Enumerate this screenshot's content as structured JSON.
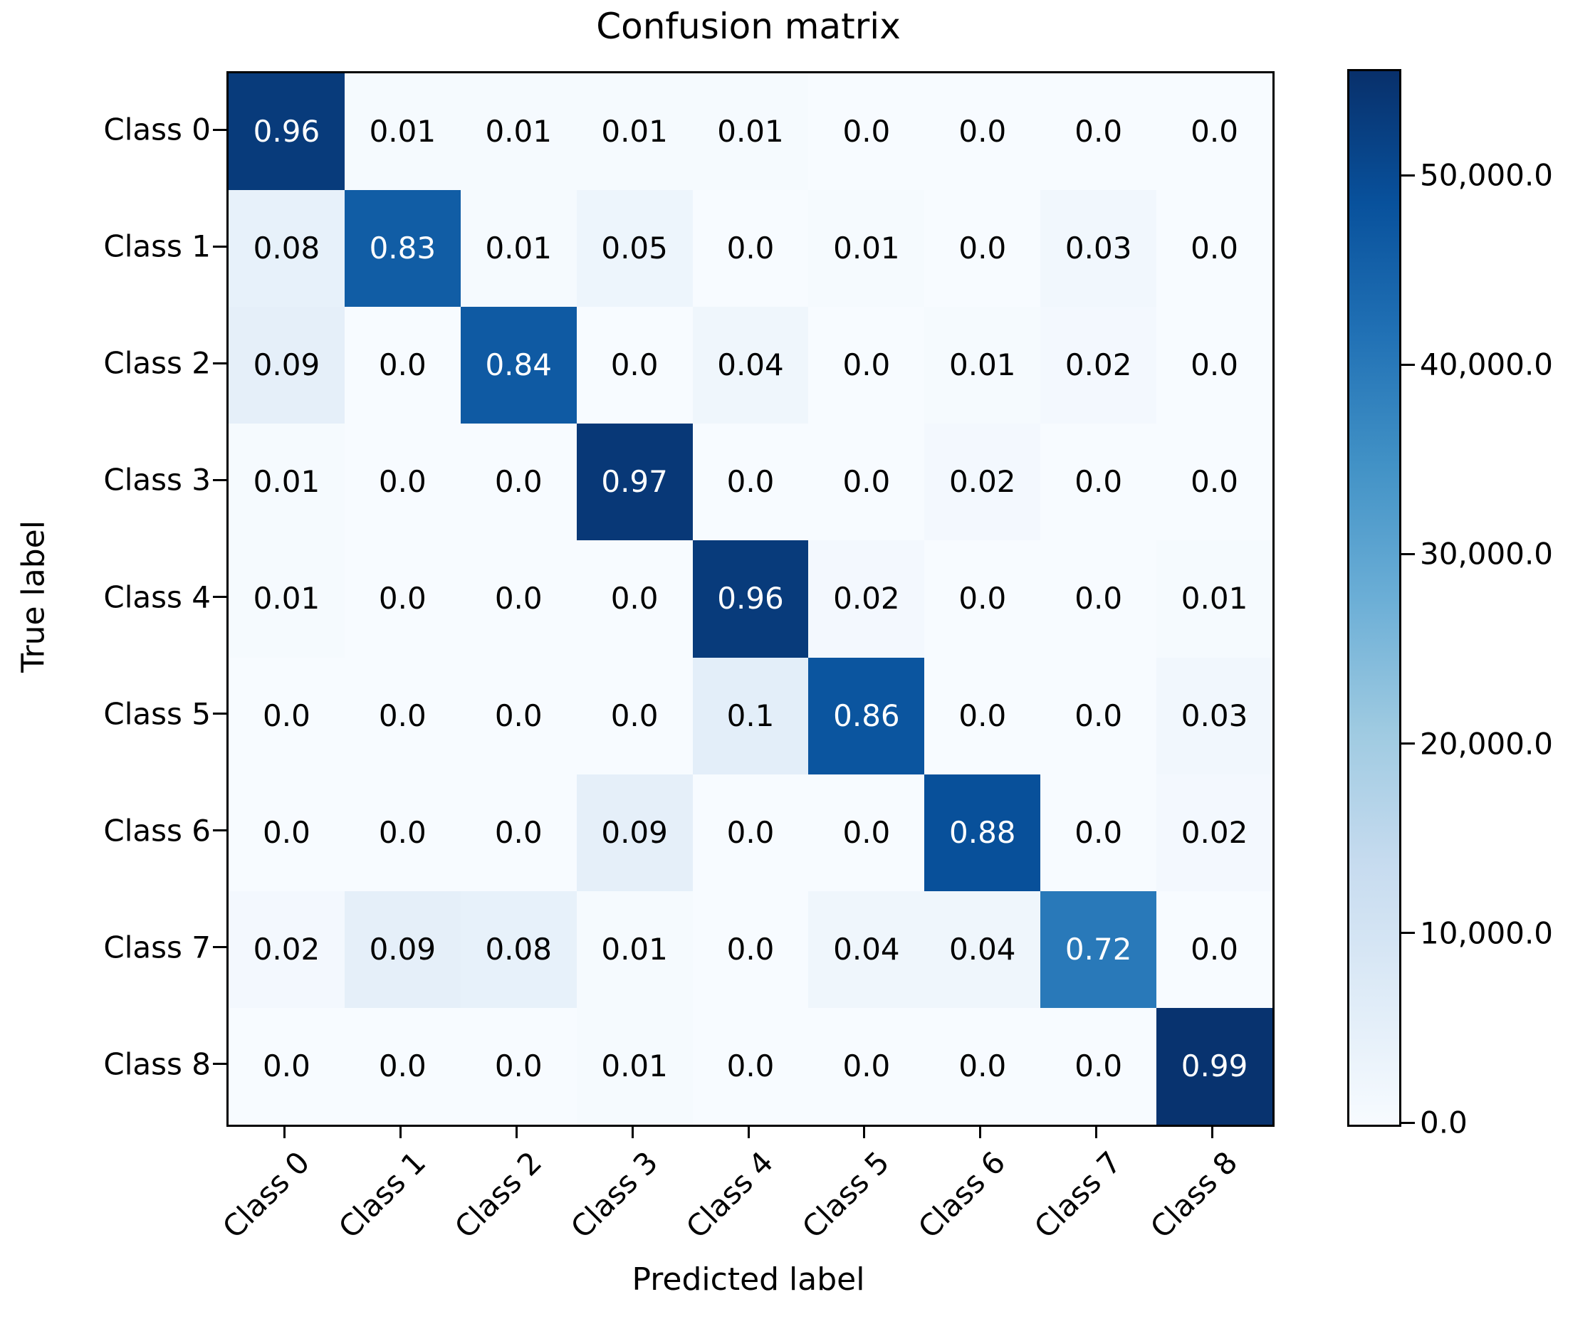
{
  "title": "Confusion matrix",
  "chart_data": {
    "type": "heatmap",
    "title": "Confusion matrix",
    "xlabel": "Predicted label",
    "ylabel": "True label",
    "x_tick_labels": [
      "Class 0",
      "Class 1",
      "Class 2",
      "Class 3",
      "Class 4",
      "Class 5",
      "Class 6",
      "Class 7",
      "Class 8"
    ],
    "y_tick_labels": [
      "Class 0",
      "Class 1",
      "Class 2",
      "Class 3",
      "Class 4",
      "Class 5",
      "Class 6",
      "Class 7",
      "Class 8"
    ],
    "matrix": [
      [
        "0.96",
        "0.01",
        "0.01",
        "0.01",
        "0.01",
        "0.0",
        "0.0",
        "0.0",
        "0.0"
      ],
      [
        "0.08",
        "0.83",
        "0.01",
        "0.05",
        "0.0",
        "0.01",
        "0.0",
        "0.03",
        "0.0"
      ],
      [
        "0.09",
        "0.0",
        "0.84",
        "0.0",
        "0.04",
        "0.0",
        "0.01",
        "0.02",
        "0.0"
      ],
      [
        "0.01",
        "0.0",
        "0.0",
        "0.97",
        "0.0",
        "0.0",
        "0.02",
        "0.0",
        "0.0"
      ],
      [
        "0.01",
        "0.0",
        "0.0",
        "0.0",
        "0.96",
        "0.02",
        "0.0",
        "0.0",
        "0.01"
      ],
      [
        "0.0",
        "0.0",
        "0.0",
        "0.0",
        "0.1",
        "0.86",
        "0.0",
        "0.0",
        "0.03"
      ],
      [
        "0.0",
        "0.0",
        "0.0",
        "0.09",
        "0.0",
        "0.0",
        "0.88",
        "0.0",
        "0.02"
      ],
      [
        "0.02",
        "0.09",
        "0.08",
        "0.01",
        "0.0",
        "0.04",
        "0.04",
        "0.72",
        "0.0"
      ],
      [
        "0.0",
        "0.0",
        "0.0",
        "0.01",
        "0.0",
        "0.0",
        "0.0",
        "0.0",
        "0.99"
      ]
    ],
    "colormap": "Blues",
    "grid": false,
    "colorbar": {
      "position": "right",
      "vmax": 55600,
      "tick_values": [
        0,
        10000,
        20000,
        30000,
        40000,
        50000
      ],
      "tick_labels": [
        "0.0",
        "10,000.0",
        "20,000.0",
        "30,000.0",
        "40,000.0",
        "50,000.0"
      ]
    }
  },
  "colors": {
    "background": "#ffffff",
    "text": "#000000",
    "cell_text_light": "#ffffff",
    "cell_text_dark": "#000000",
    "colormap_stops": [
      "#f7fbff",
      "#deebf7",
      "#c6dbef",
      "#9ecae1",
      "#6baed6",
      "#4292c6",
      "#2171b5",
      "#08519c",
      "#08306b"
    ]
  }
}
